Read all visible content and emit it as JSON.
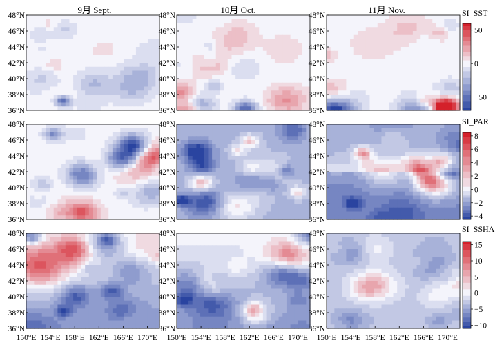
{
  "months": [
    "9月 Sept.",
    "10月 Oct.",
    "11月 Nov."
  ],
  "lat_ticks": [
    "36°N",
    "38°N",
    "40°N",
    "42°N",
    "44°N",
    "46°N",
    "48°N"
  ],
  "lon_ticks": [
    "150°E",
    "154°E",
    "158°E",
    "162°E",
    "166°E",
    "170°E"
  ],
  "colors": {
    "neg": "#2a44a0",
    "mid": "#f4f4fb",
    "pos": "#d4202a"
  },
  "chart_data": [
    {
      "type": "heatmap",
      "name": "SI_SST",
      "x_range": [
        150,
        172
      ],
      "y_range": [
        36,
        48
      ],
      "colorbar_ticks": [
        50,
        0,
        -50
      ],
      "vmin": -70,
      "vmax": 60,
      "grid": false
    },
    {
      "type": "heatmap",
      "name": "SI_PAR",
      "x_range": [
        150,
        172
      ],
      "y_range": [
        36,
        48
      ],
      "colorbar_ticks": [
        8,
        6,
        4,
        2,
        0,
        -2,
        -4
      ],
      "vmin": -4.5,
      "vmax": 8.5,
      "grid": false
    },
    {
      "type": "heatmap",
      "name": "SI_SSHA",
      "x_range": [
        150,
        172
      ],
      "y_range": [
        36,
        48
      ],
      "colorbar_ticks": [
        15,
        10,
        5,
        0,
        -5,
        -10
      ],
      "vmin": -11,
      "vmax": 16,
      "grid": false
    }
  ]
}
